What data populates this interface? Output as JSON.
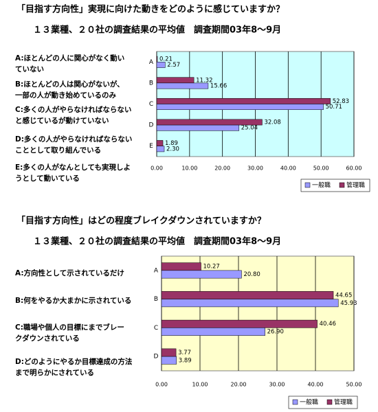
{
  "chart_data": [
    {
      "type": "bar",
      "orientation": "horizontal",
      "title": "「目指す方向性」実現に向けた動きをどのように感じていますか？",
      "subtitle": "１３業種、２０社の調査結果の平均値　調査期間03年8～9月",
      "categories": [
        "A",
        "B",
        "C",
        "D",
        "E"
      ],
      "descriptions": [
        [
          "A:ほとんどの人に関心がなく動い",
          "ていない"
        ],
        [
          "B:ほとんどの人は関心がないが、",
          "一部の人が動き始めているのみ"
        ],
        [
          "C:多くの人がやらなければならない",
          "と感じているが動けていない"
        ],
        [
          "D:多くの人がやらなければならない",
          "こととして取り組んでいる"
        ],
        [
          "E:多くの人がなんとしても実現しよ",
          "うとして動いている"
        ]
      ],
      "series": [
        {
          "name": "一般職",
          "color": "#9999ff",
          "values": [
            2.57,
            15.66,
            50.71,
            25.04,
            2.3
          ],
          "value_labels": [
            "2.57",
            "15.66",
            "50.71",
            "25.04",
            "2.30"
          ]
        },
        {
          "name": "管理職",
          "color": "#993366",
          "values": [
            0.21,
            11.32,
            52.83,
            32.08,
            1.89
          ],
          "value_labels": [
            "0.21",
            "11.32",
            "52.83",
            "32.08",
            "1.89"
          ]
        }
      ],
      "xlim": [
        0,
        60
      ],
      "xticks": [
        {
          "value": 0,
          "label": "0.00"
        },
        {
          "value": 10,
          "label": "10.00"
        },
        {
          "value": 20,
          "label": "20.00"
        },
        {
          "value": 30,
          "label": "30.00"
        },
        {
          "value": 40,
          "label": "40.00"
        },
        {
          "value": 50,
          "label": "50.00"
        },
        {
          "value": 60,
          "label": "60.00"
        }
      ],
      "grid": true,
      "background": "#ccffff",
      "legend": "bottom-right"
    },
    {
      "type": "bar",
      "orientation": "horizontal",
      "title": "「目指す方向性」はどの程度ブレイクダウンされていますか？",
      "subtitle": "１３業種、２０社の調査結果の平均値　調査期間03年8～9月",
      "categories": [
        "A",
        "B",
        "C",
        "D"
      ],
      "descriptions": [
        [
          "A:方向性として示されているだけ"
        ],
        [
          "B:何をやるか大まかに示されている"
        ],
        [
          "C:職場や個人の目標にまでブレー",
          "クダウンされている"
        ],
        [
          "D:どのようにやるか目標達成の方法",
          "まで明らかにされている"
        ]
      ],
      "series": [
        {
          "name": "一般職",
          "color": "#9999ff",
          "values": [
            20.8,
            45.93,
            26.9,
            3.89
          ],
          "value_labels": [
            "20.80",
            "45.93",
            "26.90",
            "3.89"
          ]
        },
        {
          "name": "管理職",
          "color": "#993366",
          "values": [
            10.27,
            44.65,
            40.46,
            3.77
          ],
          "value_labels": [
            "10.27",
            "44.65",
            "40.46",
            "3.77"
          ]
        }
      ],
      "xlim": [
        0,
        50
      ],
      "xticks": [
        {
          "value": 0,
          "label": "0.00"
        },
        {
          "value": 10,
          "label": "10.00"
        },
        {
          "value": 20,
          "label": "20.00"
        },
        {
          "value": 30,
          "label": "30.00"
        },
        {
          "value": 40,
          "label": "40.00"
        },
        {
          "value": 50,
          "label": "50.00"
        }
      ],
      "grid": true,
      "background": "#ffffcc",
      "legend": "bottom-right"
    }
  ]
}
